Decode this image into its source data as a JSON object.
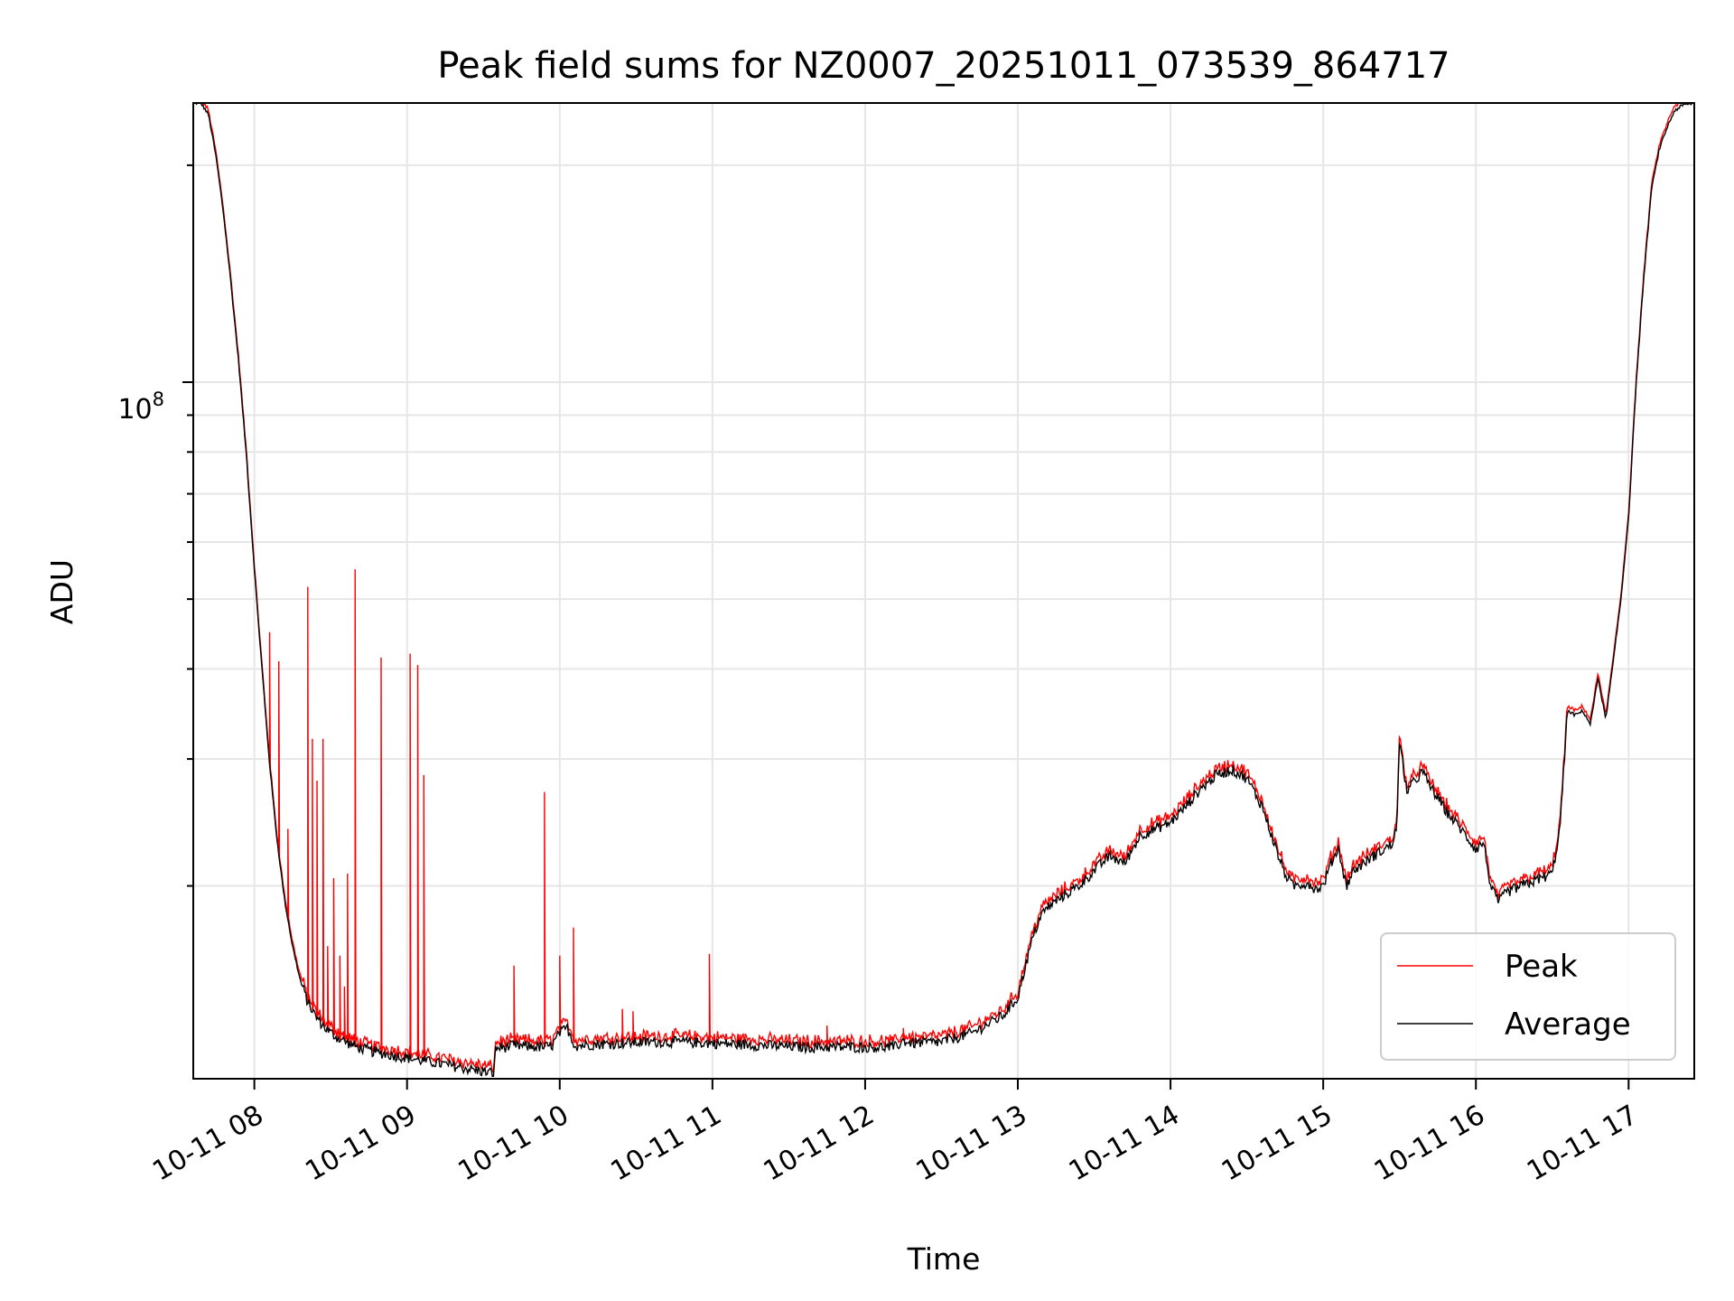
{
  "chart_data": {
    "type": "line",
    "title": "Peak field sums for NZ0007_20251011_073539_864717",
    "xlabel": "Time",
    "ylabel": "ADU",
    "x_ticks": [
      "10-11 08",
      "10-11 09",
      "10-11 10",
      "10-11 11",
      "10-11 12",
      "10-11 13",
      "10-11 14",
      "10-11 15",
      "10-11 16",
      "10-11 17"
    ],
    "x_tick_hours": [
      8,
      9,
      10,
      11,
      12,
      13,
      14,
      15,
      16,
      17
    ],
    "y_tick_label": {
      "base": "10",
      "exp": "8",
      "value": 100000000
    },
    "y_scale": "log",
    "xlim_hours": [
      7.6,
      17.43
    ],
    "ylim": [
      10800000,
      244000000
    ],
    "grid": true,
    "legend": {
      "placement": "lower-right",
      "entries": [
        "Peak",
        "Average"
      ]
    },
    "colors": {
      "Peak": "#ff0000",
      "Average": "#000000"
    },
    "series": [
      {
        "name": "Average",
        "x_hours": [
          7.6,
          7.65,
          7.7,
          7.75,
          7.8,
          7.85,
          7.9,
          7.95,
          8.0,
          8.05,
          8.1,
          8.15,
          8.2,
          8.25,
          8.3,
          8.35,
          8.4,
          8.45,
          8.5,
          8.55,
          8.6,
          8.65,
          8.7,
          8.8,
          8.9,
          9.0,
          9.1,
          9.2,
          9.3,
          9.4,
          9.5,
          9.57,
          9.58,
          9.7,
          9.9,
          9.95,
          10.0,
          10.05,
          10.1,
          10.2,
          10.4,
          10.6,
          10.8,
          11.0,
          11.2,
          11.4,
          11.6,
          11.8,
          12.0,
          12.2,
          12.25,
          12.3,
          12.5,
          12.7,
          12.9,
          13.0,
          13.05,
          13.1,
          13.15,
          13.2,
          13.3,
          13.4,
          13.5,
          13.6,
          13.7,
          13.8,
          13.9,
          14.0,
          14.1,
          14.2,
          14.3,
          14.4,
          14.5,
          14.6,
          14.7,
          14.75,
          14.8,
          14.9,
          14.95,
          15.0,
          15.05,
          15.1,
          15.15,
          15.2,
          15.3,
          15.4,
          15.45,
          15.48,
          15.5,
          15.55,
          15.6,
          15.65,
          15.7,
          15.8,
          15.9,
          16.0,
          16.05,
          16.1,
          16.15,
          16.2,
          16.3,
          16.4,
          16.5,
          16.55,
          16.6,
          16.65,
          16.7,
          16.75,
          16.8,
          16.85,
          16.9,
          16.95,
          17.0,
          17.05,
          17.1,
          17.15,
          17.2,
          17.25,
          17.3,
          17.35,
          17.43
        ],
        "values": [
          244000000,
          244000000,
          235000000,
          205000000,
          170000000,
          135000000,
          105000000,
          78000000,
          55000000,
          40000000,
          29500000,
          23000000,
          19000000,
          16500000,
          14800000,
          13800000,
          13200000,
          12800000,
          12500000,
          12300000,
          12150000,
          12000000,
          11900000,
          11750000,
          11650000,
          11550000,
          11450000,
          11350000,
          11250000,
          11150000,
          11050000,
          11000000,
          11900000,
          12000000,
          11950000,
          12000000,
          12500000,
          12700000,
          12000000,
          12050000,
          12100000,
          12150000,
          12150000,
          12100000,
          12050000,
          12000000,
          11950000,
          11950000,
          11950000,
          11950000,
          12200000,
          12100000,
          12150000,
          12500000,
          13200000,
          14000000,
          15500000,
          17000000,
          18200000,
          18700000,
          19400000,
          20000000,
          21000000,
          22000000,
          21500000,
          23500000,
          24000000,
          24500000,
          25800000,
          27300000,
          28500000,
          29000000,
          28200000,
          25800000,
          22200000,
          20800000,
          20000000,
          20200000,
          19800000,
          20000000,
          21500000,
          22600000,
          20000000,
          21000000,
          21800000,
          22500000,
          22800000,
          24000000,
          31500000,
          27000000,
          28000000,
          28800000,
          27500000,
          25500000,
          24000000,
          22500000,
          23000000,
          19800000,
          19000000,
          19600000,
          20000000,
          20400000,
          20800000,
          24000000,
          35000000,
          34500000,
          35000000,
          33500000,
          39000000,
          34000000,
          41000000,
          50000000,
          65000000,
          100000000,
          140000000,
          185000000,
          210000000,
          225000000,
          238000000,
          242000000,
          244000000
        ]
      },
      {
        "name": "Peak",
        "offset_factor": 1.012,
        "spikes": [
          {
            "hour": 8.1,
            "value": 45000000
          },
          {
            "hour": 8.16,
            "value": 41000000
          },
          {
            "hour": 8.22,
            "value": 24000000
          },
          {
            "hour": 8.35,
            "value": 52000000
          },
          {
            "hour": 8.38,
            "value": 32000000
          },
          {
            "hour": 8.41,
            "value": 28000000
          },
          {
            "hour": 8.45,
            "value": 32000000
          },
          {
            "hour": 8.48,
            "value": 16500000
          },
          {
            "hour": 8.52,
            "value": 20500000
          },
          {
            "hour": 8.56,
            "value": 16000000
          },
          {
            "hour": 8.59,
            "value": 14500000
          },
          {
            "hour": 8.61,
            "value": 20800000
          },
          {
            "hour": 8.66,
            "value": 55000000
          },
          {
            "hour": 8.83,
            "value": 41500000
          },
          {
            "hour": 9.02,
            "value": 42000000
          },
          {
            "hour": 9.07,
            "value": 40500000
          },
          {
            "hour": 9.11,
            "value": 28500000
          },
          {
            "hour": 9.7,
            "value": 15500000
          },
          {
            "hour": 9.9,
            "value": 27000000
          },
          {
            "hour": 10.0,
            "value": 16000000
          },
          {
            "hour": 10.09,
            "value": 17500000
          },
          {
            "hour": 10.41,
            "value": 13500000
          },
          {
            "hour": 10.48,
            "value": 13400000
          },
          {
            "hour": 10.98,
            "value": 16100000
          },
          {
            "hour": 11.75,
            "value": 12800000
          },
          {
            "hour": 12.25,
            "value": 12700000
          }
        ]
      }
    ]
  }
}
